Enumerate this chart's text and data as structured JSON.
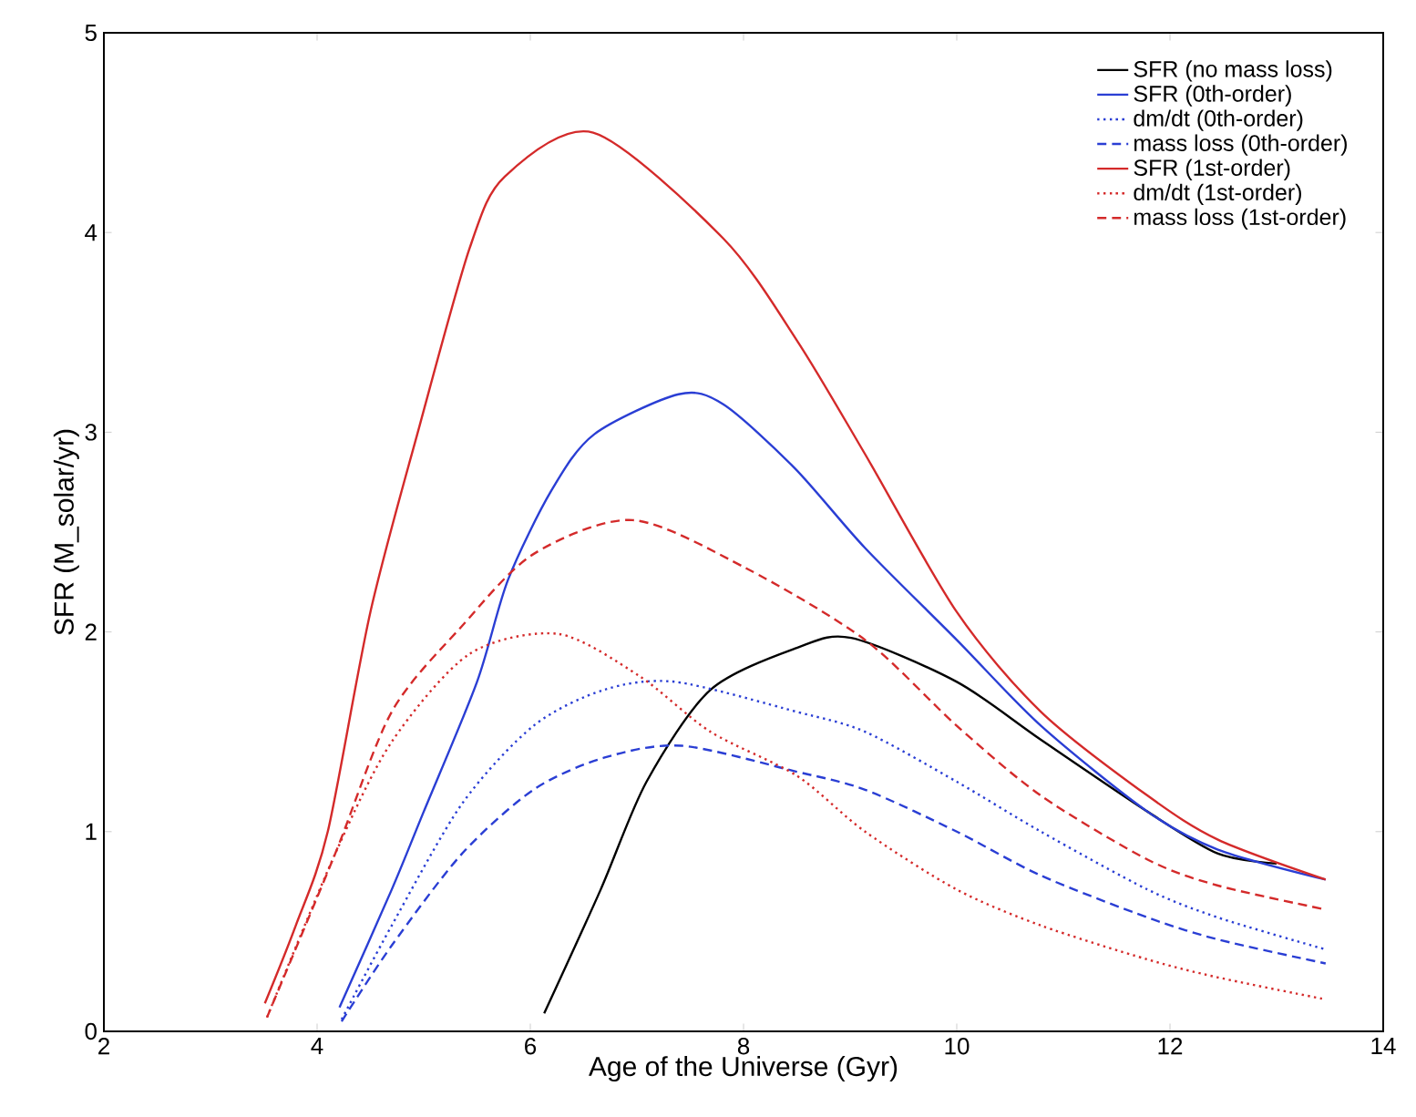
{
  "chart_data": {
    "type": "line",
    "xlabel": "Age of the Universe (Gyr)",
    "ylabel": "SFR (M_solar/yr)",
    "xlim": [
      2,
      14
    ],
    "ylim": [
      0,
      5
    ],
    "xticks": [
      2,
      4,
      6,
      8,
      10,
      12,
      14
    ],
    "yticks": [
      0,
      1,
      2,
      3,
      4,
      5
    ],
    "legend": "top right",
    "marker": "none",
    "series": [
      {
        "name": "SFR (no mass loss)",
        "color": "#000000",
        "line_style": "solid",
        "x": [
          6.13,
          6.66,
          7.09,
          7.69,
          8.5,
          9.01,
          10,
          10.79,
          11.79,
          12.45,
          13.0
        ],
        "values": [
          0.09,
          0.71,
          1.25,
          1.71,
          1.92,
          1.97,
          1.75,
          1.46,
          1.1,
          0.89,
          0.84
        ]
      },
      {
        "name": "SFR (0th-order)",
        "color": "#2a3ed4",
        "line_style": "solid",
        "x": [
          4.21,
          4.7,
          5.0,
          5.5,
          5.79,
          6.2,
          6.6,
          7.39,
          7.81,
          8.48,
          9.14,
          10,
          10.79,
          11.79,
          12.45,
          13.46
        ],
        "values": [
          0.12,
          0.71,
          1.1,
          1.75,
          2.26,
          2.71,
          2.99,
          3.19,
          3.14,
          2.82,
          2.42,
          1.96,
          1.53,
          1.1,
          0.91,
          0.76
        ]
      },
      {
        "name": "dm/dt (0th-order)",
        "color": "#2a3ed4",
        "line_style": "dotted",
        "x": [
          4.23,
          4.7,
          5.36,
          6.03,
          6.69,
          7.36,
          8.5,
          9.14,
          10,
          10.79,
          11.79,
          12.45,
          13.46
        ],
        "values": [
          0.06,
          0.53,
          1.14,
          1.53,
          1.71,
          1.75,
          1.6,
          1.5,
          1.25,
          1.0,
          0.71,
          0.57,
          0.41
        ]
      },
      {
        "name": "mass loss (0th-order)",
        "color": "#2a3ed4",
        "line_style": "dashed",
        "x": [
          4.23,
          4.7,
          5.36,
          6.03,
          6.69,
          7.42,
          8.5,
          9.14,
          10,
          10.79,
          11.79,
          12.45,
          13.46
        ],
        "values": [
          0.05,
          0.43,
          0.89,
          1.21,
          1.37,
          1.43,
          1.3,
          1.21,
          1.0,
          0.78,
          0.57,
          0.46,
          0.34
        ]
      },
      {
        "name": "SFR (1st-order)",
        "color": "#d42a2a",
        "line_style": "solid",
        "x": [
          3.51,
          3.8,
          4.1,
          4.5,
          4.96,
          5.43,
          5.76,
          6.59,
          7.81,
          8.5,
          9.14,
          10,
          10.79,
          11.79,
          12.45,
          13.46
        ],
        "values": [
          0.14,
          0.53,
          1.0,
          2.1,
          3.03,
          3.92,
          4.28,
          4.5,
          3.97,
          3.46,
          2.89,
          2.1,
          1.6,
          1.18,
          0.96,
          0.76
        ]
      },
      {
        "name": "dm/dt (1st-order)",
        "color": "#d42a2a",
        "line_style": "dotted",
        "x": [
          3.53,
          4.17,
          4.7,
          5.43,
          6.26,
          7.02,
          7.69,
          8.5,
          9.14,
          10,
          10.79,
          11.79,
          12.45,
          13.46
        ],
        "values": [
          0.07,
          0.89,
          1.45,
          1.89,
          1.99,
          1.78,
          1.5,
          1.28,
          1.0,
          0.71,
          0.53,
          0.36,
          0.27,
          0.16
        ]
      },
      {
        "name": "mass loss (1st-order)",
        "color": "#d42a2a",
        "line_style": "dashed",
        "x": [
          3.53,
          4.17,
          4.7,
          5.36,
          6.03,
          6.96,
          8.02,
          9.14,
          10,
          10.79,
          11.79,
          12.45,
          13.46
        ],
        "values": [
          0.07,
          0.89,
          1.6,
          2.03,
          2.39,
          2.56,
          2.32,
          1.96,
          1.53,
          1.18,
          0.86,
          0.73,
          0.61
        ]
      }
    ]
  }
}
